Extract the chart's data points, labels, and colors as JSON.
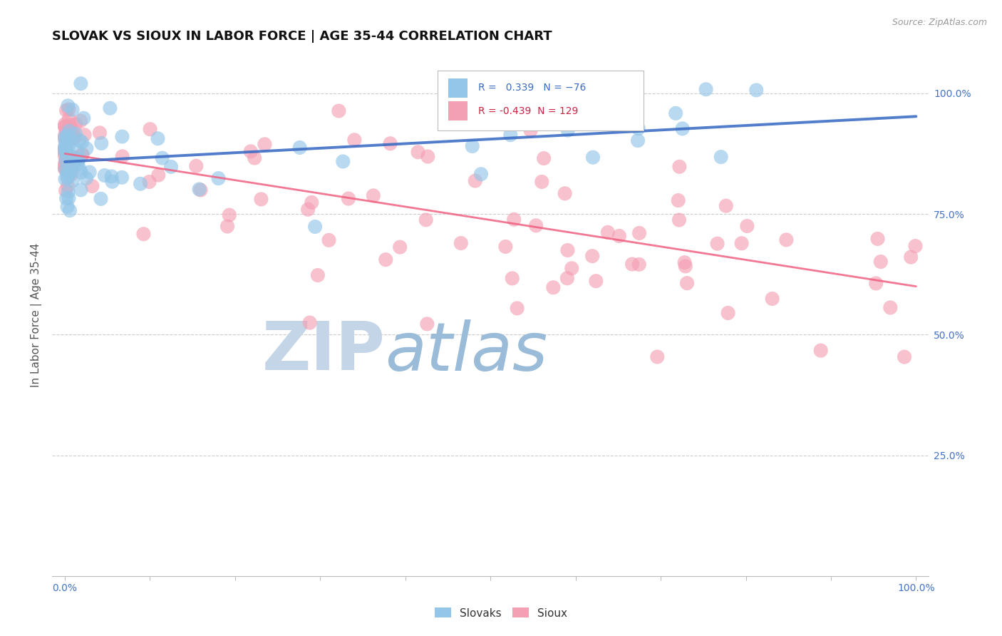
{
  "title": "SLOVAK VS SIOUX IN LABOR FORCE | AGE 35-44 CORRELATION CHART",
  "source_text": "Source: ZipAtlas.com",
  "ylabel": "In Labor Force | Age 35-44",
  "y_tick_labels_right": [
    "25.0%",
    "50.0%",
    "75.0%",
    "100.0%"
  ],
  "y_tick_positions_right": [
    0.25,
    0.5,
    0.75,
    1.0
  ],
  "xlim": [
    0.0,
    1.0
  ],
  "ylim": [
    0.0,
    1.08
  ],
  "slovak_R": 0.339,
  "slovak_N": 76,
  "sioux_R": -0.439,
  "sioux_N": 129,
  "slovak_color": "#93C6E8",
  "sioux_color": "#F4A0B4",
  "slovak_line_color": "#3A6BC4",
  "sioux_line_color": "#F06080",
  "watermark_zip": "ZIP",
  "watermark_atlas": "atlas",
  "watermark_color_zip": "#C5D5E8",
  "watermark_color_atlas": "#9BBCD8",
  "background_color": "#FFFFFF",
  "grid_color": "#CCCCCC",
  "legend_R_slovak_color": "#3A6BC4",
  "legend_R_sioux_color": "#CC2244",
  "title_fontsize": 13,
  "axis_label_fontsize": 11,
  "tick_fontsize": 10,
  "slovak_line_start_y": 0.858,
  "slovak_line_end_y": 0.952,
  "sioux_line_start_y": 0.875,
  "sioux_line_end_y": 0.6
}
